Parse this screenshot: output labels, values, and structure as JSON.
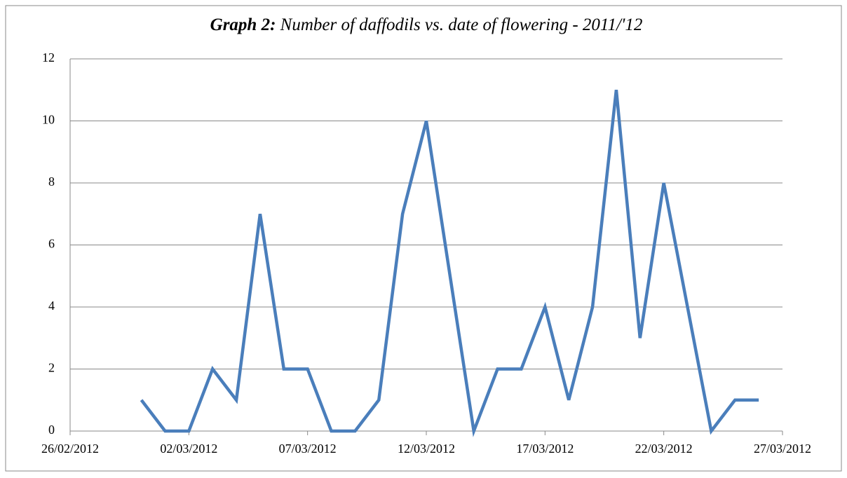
{
  "chart_data": {
    "type": "line",
    "title_prefix": "Graph 2:",
    "title": "Number of daffodils vs. date of flowering - 2011/'12",
    "x": [
      "2012-02-29",
      "2012-03-01",
      "2012-03-02",
      "2012-03-03",
      "2012-03-04",
      "2012-03-05",
      "2012-03-06",
      "2012-03-07",
      "2012-03-08",
      "2012-03-09",
      "2012-03-10",
      "2012-03-11",
      "2012-03-12",
      "2012-03-13",
      "2012-03-14",
      "2012-03-15",
      "2012-03-16",
      "2012-03-17",
      "2012-03-18",
      "2012-03-19",
      "2012-03-20",
      "2012-03-21",
      "2012-03-22",
      "2012-03-23",
      "2012-03-24",
      "2012-03-25",
      "2012-03-26"
    ],
    "values": [
      1,
      0,
      0,
      2,
      1,
      7,
      2,
      2,
      0,
      0,
      1,
      7,
      10,
      5,
      0,
      2,
      2,
      4,
      1,
      4,
      11,
      3,
      8,
      4,
      0,
      1,
      1
    ],
    "color": "#4a7ebb",
    "xlim": [
      "2012-02-26",
      "2012-03-27"
    ],
    "xticks": [
      {
        "value": "2012-02-26",
        "label": "26/02/2012"
      },
      {
        "value": "2012-03-02",
        "label": "02/03/2012"
      },
      {
        "value": "2012-03-07",
        "label": "07/03/2012"
      },
      {
        "value": "2012-03-12",
        "label": "12/03/2012"
      },
      {
        "value": "2012-03-17",
        "label": "17/03/2012"
      },
      {
        "value": "2012-03-22",
        "label": "22/03/2012"
      },
      {
        "value": "2012-03-27",
        "label": "27/03/2012"
      }
    ],
    "ylim": [
      0,
      12
    ],
    "yticks": [
      0,
      2,
      4,
      6,
      8,
      10,
      12
    ],
    "grid": true
  }
}
